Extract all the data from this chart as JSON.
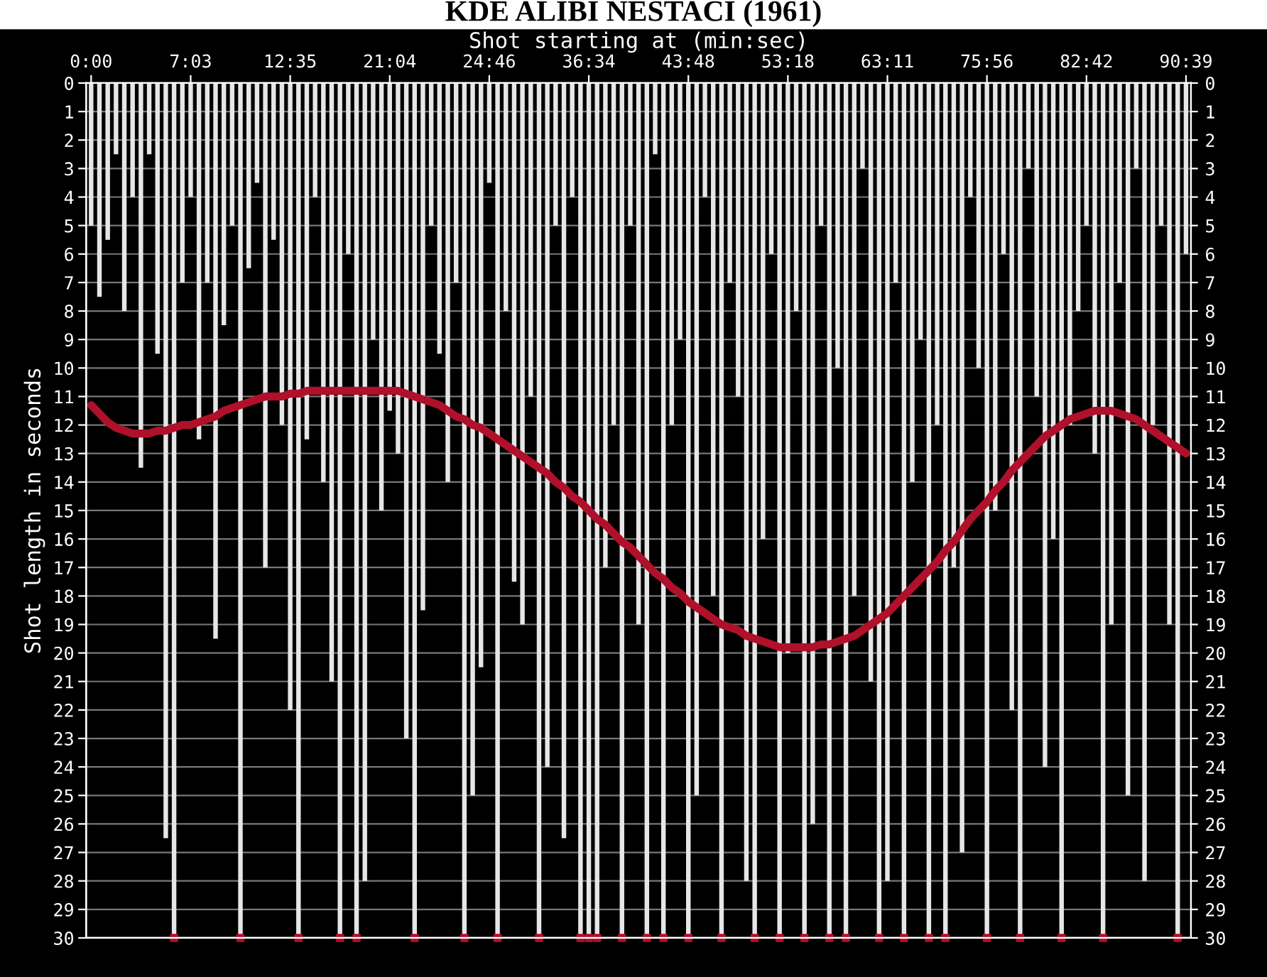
{
  "chart_data": {
    "type": "bar",
    "title": "KDE ALIBI NESTACI (1961)",
    "xlabel": "Shot starting at (min:sec)",
    "ylabel": "Shot length in seconds",
    "categories": [
      "0:00",
      null,
      null,
      null,
      null,
      null,
      null,
      null,
      null,
      null,
      null,
      null,
      "7:03",
      null,
      null,
      null,
      null,
      null,
      null,
      null,
      null,
      null,
      null,
      null,
      "12:35",
      null,
      null,
      null,
      null,
      null,
      null,
      null,
      null,
      null,
      null,
      null,
      "21:04",
      null,
      null,
      null,
      null,
      null,
      null,
      null,
      null,
      null,
      null,
      null,
      "24:46",
      null,
      null,
      null,
      null,
      null,
      null,
      null,
      null,
      null,
      null,
      null,
      "36:34",
      null,
      null,
      null,
      null,
      null,
      null,
      null,
      null,
      null,
      null,
      null,
      "43:48",
      null,
      null,
      null,
      null,
      null,
      null,
      null,
      null,
      null,
      null,
      null,
      "53:18",
      null,
      null,
      null,
      null,
      null,
      null,
      null,
      null,
      null,
      null,
      null,
      "63:11",
      null,
      null,
      null,
      null,
      null,
      null,
      null,
      null,
      null,
      null,
      null,
      "75:56",
      null,
      null,
      null,
      null,
      null,
      null,
      null,
      null,
      null,
      null,
      null,
      "82:42",
      null,
      null,
      null,
      null,
      null,
      null,
      null,
      null,
      null,
      null,
      null,
      "90:39"
    ],
    "series": [
      {
        "color": "#e6e6e6",
        "values": [
          5,
          7.5,
          5.5,
          2.5,
          8,
          4,
          13.5,
          2.5,
          9.5,
          26.5,
          30,
          7,
          4,
          12.5,
          7,
          19.5,
          8.5,
          5,
          30,
          6.5,
          3.5,
          17,
          5.5,
          12,
          22,
          30,
          12.5,
          4,
          14,
          21,
          30,
          6,
          30,
          28,
          9,
          15,
          11.5,
          13,
          23,
          30,
          18.5,
          5,
          9.5,
          14,
          7,
          30,
          25,
          20.5,
          3.5,
          30,
          8,
          17.5,
          19,
          11,
          30,
          24,
          5,
          26.5,
          4,
          30,
          30,
          30,
          17,
          12,
          30,
          5,
          19,
          30,
          2.5,
          30,
          12,
          9,
          30,
          25,
          4,
          18,
          30,
          7,
          11,
          28,
          30,
          16,
          6,
          30,
          20,
          8,
          30,
          26,
          5,
          30,
          10,
          30,
          18,
          3,
          21,
          30,
          28,
          7,
          30,
          14,
          9,
          30,
          12,
          30,
          17,
          27,
          4,
          10,
          30,
          15,
          6,
          22,
          30,
          3,
          11,
          24,
          16,
          30,
          12,
          8,
          5,
          13,
          30,
          19,
          7,
          25,
          3,
          28,
          12,
          5,
          19,
          30,
          6
        ]
      },
      {
        "type": "scatter",
        "color": "#b0102a",
        "marker": "square",
        "values": [
          null,
          null,
          null,
          null,
          null,
          null,
          null,
          null,
          null,
          null,
          30,
          null,
          null,
          null,
          null,
          null,
          null,
          null,
          30,
          null,
          null,
          null,
          null,
          null,
          null,
          30,
          null,
          null,
          null,
          null,
          30,
          null,
          30,
          null,
          null,
          null,
          null,
          null,
          null,
          30,
          null,
          null,
          null,
          null,
          null,
          30,
          null,
          null,
          null,
          30,
          null,
          null,
          null,
          null,
          30,
          null,
          null,
          null,
          null,
          30,
          30,
          30,
          null,
          null,
          30,
          null,
          null,
          30,
          null,
          30,
          null,
          null,
          30,
          null,
          null,
          null,
          30,
          null,
          null,
          null,
          30,
          null,
          null,
          30,
          null,
          null,
          30,
          null,
          null,
          30,
          null,
          30,
          null,
          null,
          null,
          30,
          null,
          null,
          30,
          null,
          null,
          30,
          null,
          30,
          null,
          null,
          null,
          null,
          30,
          null,
          null,
          null,
          30,
          null,
          null,
          null,
          null,
          30,
          null,
          null,
          null,
          null,
          30,
          null,
          null,
          null,
          null,
          null,
          null,
          null,
          null,
          30,
          null
        ]
      },
      {
        "type": "line",
        "color": "#b0102a",
        "values": [
          11.3,
          11.6,
          11.9,
          12.1,
          12.2,
          12.3,
          12.3,
          12.3,
          12.2,
          12.2,
          12.1,
          12.0,
          12.0,
          11.9,
          11.8,
          11.7,
          11.5,
          11.4,
          11.3,
          11.2,
          11.1,
          11.0,
          11.0,
          11.0,
          10.9,
          10.9,
          10.8,
          10.8,
          10.8,
          10.8,
          10.8,
          10.8,
          10.8,
          10.8,
          10.8,
          10.8,
          10.8,
          10.8,
          10.9,
          11.0,
          11.1,
          11.2,
          11.3,
          11.5,
          11.7,
          11.8,
          12.0,
          12.1,
          12.3,
          12.5,
          12.7,
          12.9,
          13.1,
          13.3,
          13.5,
          13.7,
          14.0,
          14.2,
          14.5,
          14.7,
          15.0,
          15.3,
          15.5,
          15.8,
          16.1,
          16.3,
          16.6,
          16.9,
          17.2,
          17.4,
          17.7,
          17.9,
          18.2,
          18.4,
          18.6,
          18.8,
          19.0,
          19.1,
          19.2,
          19.4,
          19.5,
          19.6,
          19.7,
          19.8,
          19.8,
          19.8,
          19.8,
          19.8,
          19.7,
          19.7,
          19.6,
          19.5,
          19.4,
          19.2,
          19.0,
          18.8,
          18.6,
          18.3,
          18.0,
          17.7,
          17.4,
          17.1,
          16.8,
          16.4,
          16.1,
          15.7,
          15.3,
          15.0,
          14.7,
          14.3,
          14.0,
          13.6,
          13.3,
          13.0,
          12.7,
          12.4,
          12.2,
          12.0,
          11.8,
          11.7,
          11.6,
          11.5,
          11.5,
          11.5,
          11.6,
          11.7,
          11.8,
          12.0,
          12.2,
          12.4,
          12.6,
          12.8,
          13.0
        ]
      }
    ],
    "ylim": [
      30,
      0
    ],
    "yticks": [
      0,
      1,
      2,
      3,
      4,
      5,
      6,
      7,
      8,
      9,
      10,
      11,
      12,
      13,
      14,
      15,
      16,
      17,
      18,
      19,
      20,
      21,
      22,
      23,
      24,
      25,
      26,
      27,
      28,
      29,
      30
    ],
    "y2lim": [
      30,
      0
    ],
    "y2ticks": [
      0,
      1,
      2,
      3,
      4,
      5,
      6,
      7,
      8,
      9,
      10,
      11,
      12,
      13,
      14,
      15,
      16,
      17,
      18,
      19,
      20,
      21,
      22,
      23,
      24,
      25,
      26,
      27,
      28,
      29,
      30
    ],
    "grid": "y"
  }
}
